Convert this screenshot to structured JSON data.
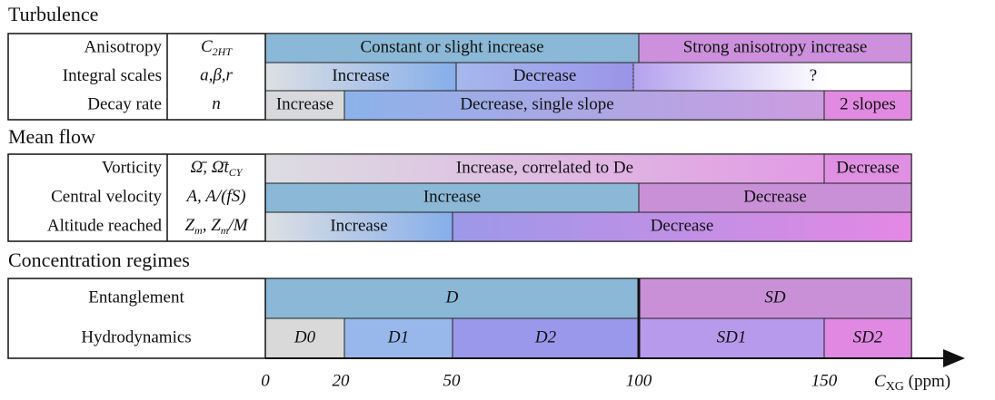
{
  "sections": [
    {
      "title": "Turbulence",
      "rows": [
        {
          "label": "Anisotropy",
          "symbol": [
            "C",
            "2HT"
          ],
          "segments": [
            {
              "label": "Constant or slight increase"
            },
            {
              "label": "Strong anisotropy increase"
            }
          ]
        },
        {
          "label": "Integral scales",
          "symbol": [
            "a,β,r"
          ],
          "segments": [
            {
              "label": "Increase"
            },
            {
              "label": "Decrease"
            },
            {
              "label": "?"
            }
          ]
        },
        {
          "label": "Decay rate",
          "symbol": [
            "n"
          ],
          "segments": [
            {
              "label": "Increase"
            },
            {
              "label": "Decrease, single slope"
            },
            {
              "label": "2 slopes"
            }
          ]
        }
      ]
    },
    {
      "title": "Mean flow",
      "rows": [
        {
          "label": "Vorticity",
          "symbol": [
            "Ω̄, Ω̄t",
            "CY"
          ],
          "segments": [
            {
              "label": "Increase, correlated to De"
            },
            {
              "label": "Decrease"
            }
          ]
        },
        {
          "label": "Central velocity",
          "symbol": [
            "A, A/(fS)"
          ],
          "segments": [
            {
              "label": "Increase"
            },
            {
              "label": "Decrease"
            }
          ]
        },
        {
          "label": "Altitude reached",
          "symbol": [
            "Z",
            "m",
            ", Z",
            "m",
            "/M"
          ],
          "segments": [
            {
              "label": "Increase"
            },
            {
              "label": "Decrease"
            }
          ]
        }
      ]
    },
    {
      "title": "Concentration regimes",
      "rows": [
        {
          "label": "Entanglement",
          "segments": [
            {
              "label": "D"
            },
            {
              "label": "SD"
            }
          ]
        },
        {
          "label": "Hydrodynamics",
          "segments": [
            {
              "label": "D0"
            },
            {
              "label": "D1"
            },
            {
              "label": "D2"
            },
            {
              "label": "SD1"
            },
            {
              "label": "SD2"
            }
          ]
        }
      ]
    }
  ],
  "axis": {
    "ticks": [
      "0",
      "20",
      "50",
      "100",
      "150"
    ],
    "label": [
      "C",
      "XG",
      " (ppm)"
    ]
  }
}
